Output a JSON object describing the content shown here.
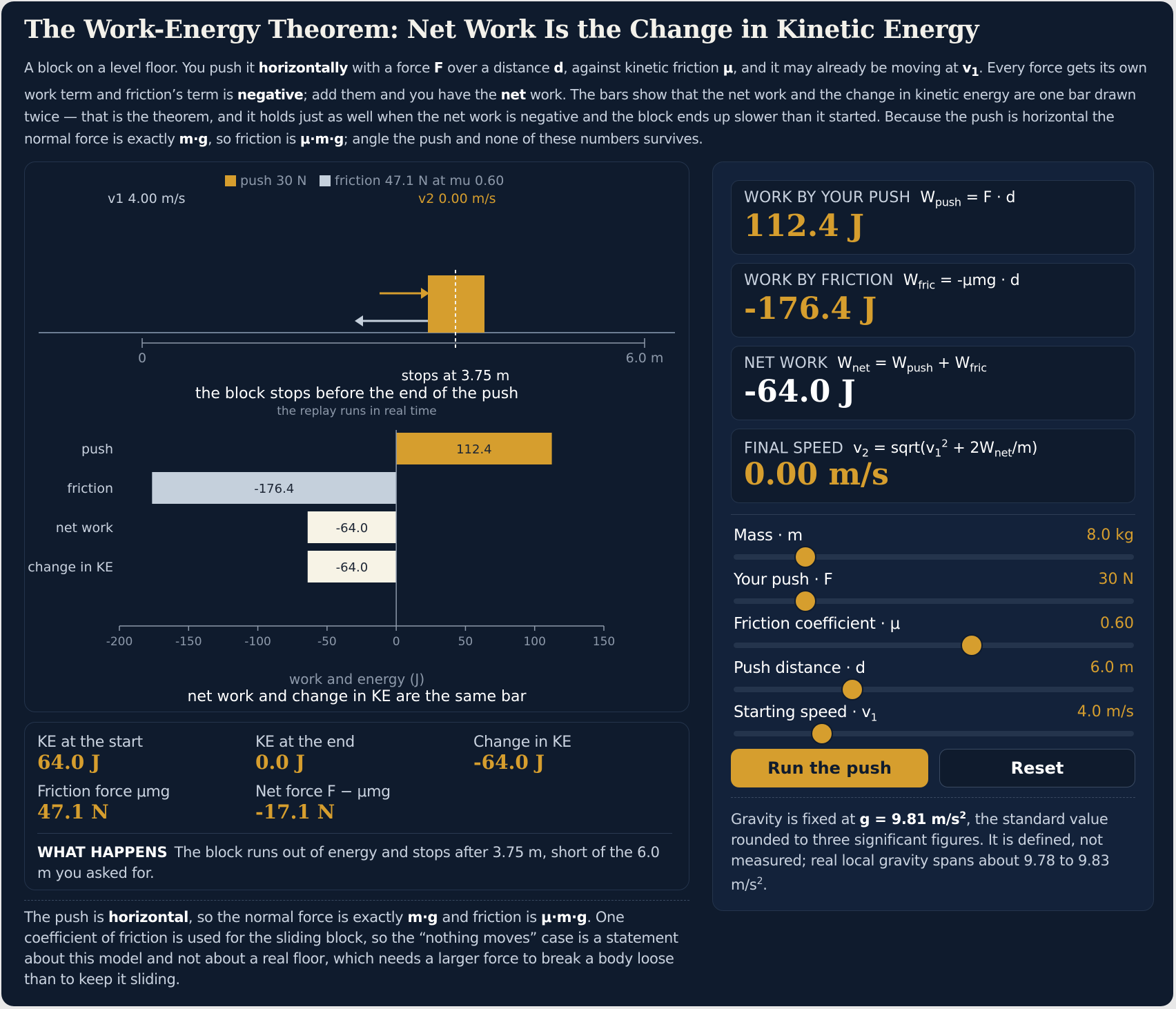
{
  "title": "The Work-Energy Theorem: Net Work Is the Change in Kinetic Energy",
  "intro": {
    "p1": "A block on a level floor. You push it ",
    "b1": "horizontally",
    "p2": " with a force ",
    "b2": "F",
    "p3": " over a distance ",
    "b3": "d",
    "p4": ", against kinetic friction ",
    "b4": "μ",
    "p5": ", and it may already be moving at ",
    "b5": "v",
    "b5sub": "1",
    "p6": ". Every force gets its own work term and friction’s term is ",
    "b6": "negative",
    "p7": "; add them and you have the ",
    "b7": "net",
    "p8": " work. The bars show that the net work and the change in kinetic energy are one bar drawn twice — that is the theorem, and it holds just as well when the net work is negative and the block ends up slower than it started. Because the push is horizontal the normal force is exactly ",
    "b8": "m·g",
    "p9": ", so friction is ",
    "b9": "μ·m·g",
    "p10": "; angle the push and none of these numbers survives."
  },
  "simulation": {
    "legend_push": "push 30 N",
    "legend_friction": "friction 47.1 N at mu 0.60",
    "v1_label": "v1 4.00 m/s",
    "v2_label": "v2 0.00 m/s",
    "axis_start": "0",
    "axis_end": "6.0 m",
    "stop_label": "stops at 3.75 m",
    "status": "the block stops before the end of the push",
    "note": "the replay runs in real time",
    "push_distance_m": 6.0,
    "stop_position_m": 3.75
  },
  "chart_data": {
    "type": "bar",
    "orientation": "horizontal",
    "categories": [
      "push",
      "friction",
      "net work",
      "change in KE"
    ],
    "values": [
      112.4,
      -176.4,
      -64.0,
      -64.0
    ],
    "value_labels": [
      "112.4",
      "-176.4",
      "-64.0",
      "-64.0"
    ],
    "colors": [
      "#d69e2e",
      "#c5d0dc",
      "#f7f3e6",
      "#f7f3e6"
    ],
    "xlabel": "work and energy (J)",
    "xlim": [
      -200,
      150
    ],
    "ticks": [
      "-200",
      "-150",
      "-100",
      "-50",
      "0",
      "50",
      "100",
      "150"
    ],
    "tick_values": [
      -200,
      -150,
      -100,
      -50,
      0,
      50,
      100,
      150
    ],
    "caption": "net work and change in KE are the same bar"
  },
  "stats": {
    "ke_start_label": "KE at the start",
    "ke_start_value": "64.0 J",
    "ke_end_label": "KE at the end",
    "ke_end_value": "0.0 J",
    "change_ke_label": "Change in KE",
    "change_ke_value": "-64.0 J",
    "friction_force_label": "Friction force μmg",
    "friction_force_value": "47.1 N",
    "net_force_label": "Net force F − μmg",
    "net_force_value": "-17.1 N",
    "what_title": "WHAT HAPPENS",
    "what_text": "The block runs out of energy and stops after 3.75 m, short of the 6.0 m you asked for."
  },
  "footnote": {
    "p1": "The push is ",
    "b1": "horizontal",
    "p2": ", so the normal force is exactly ",
    "b2": "m·g",
    "p3": " and friction is ",
    "b3": "μ·m·g",
    "p4": ". One coefficient of friction is used for the sliding block, so the “nothing moves” case is a statement about this model and not about a real floor, which needs a larger force to break a body loose than to keep it sliding."
  },
  "cards": {
    "push": {
      "label": "WORK BY YOUR PUSH",
      "f_main": "W",
      "f_sub": "push",
      "f_rest": " = F · d",
      "value": "112.4 J"
    },
    "friction": {
      "label": "WORK BY FRICTION",
      "f_main": "W",
      "f_sub": "fric",
      "f_rest": " = -μmg · d",
      "value": "-176.4 J"
    },
    "net": {
      "label": "NET WORK",
      "f_main": "W",
      "f_sub": "net",
      "f_eq": " = W",
      "f_sub2": "push",
      "f_plus": " + W",
      "f_sub3": "fric",
      "value": "-64.0 J"
    },
    "speed": {
      "label": "FINAL SPEED",
      "f_main": "v",
      "f_sub": "2",
      "f_a": " = sqrt(v",
      "f_sub2": "1",
      "f_sup": "2",
      "f_b": " + 2W",
      "f_sub3": "net",
      "f_c": "/m)",
      "value": "0.00 m/s"
    }
  },
  "sliders": [
    {
      "name": "Mass · m",
      "sub": "",
      "value": "8.0 kg",
      "fraction": 0.18
    },
    {
      "name": "Your push · F",
      "sub": "",
      "value": "30 N",
      "fraction": 0.18
    },
    {
      "name": "Friction coefficient · μ",
      "sub": "",
      "value": "0.60",
      "fraction": 0.595
    },
    {
      "name": "Push distance · d",
      "sub": "",
      "value": "6.0 m",
      "fraction": 0.296
    },
    {
      "name": "Starting speed · v",
      "sub": "1",
      "value": "4.0 m/s",
      "fraction": 0.22
    }
  ],
  "buttons": {
    "run": "Run the push",
    "reset": "Reset"
  },
  "gravity": {
    "p1": "Gravity is fixed at ",
    "b1": "g = 9.81 m/s",
    "b1sup": "2",
    "p2": ", the standard value rounded to three significant figures. It is defined, not measured; real local gravity spans about 9.78 to 9.83 m/s",
    "p2sup": "2",
    "p3": "."
  },
  "colors": {
    "accent": "#d69e2e",
    "friction": "#c5d0dc",
    "net": "#f7f3e6",
    "background": "#0f1b2d"
  }
}
